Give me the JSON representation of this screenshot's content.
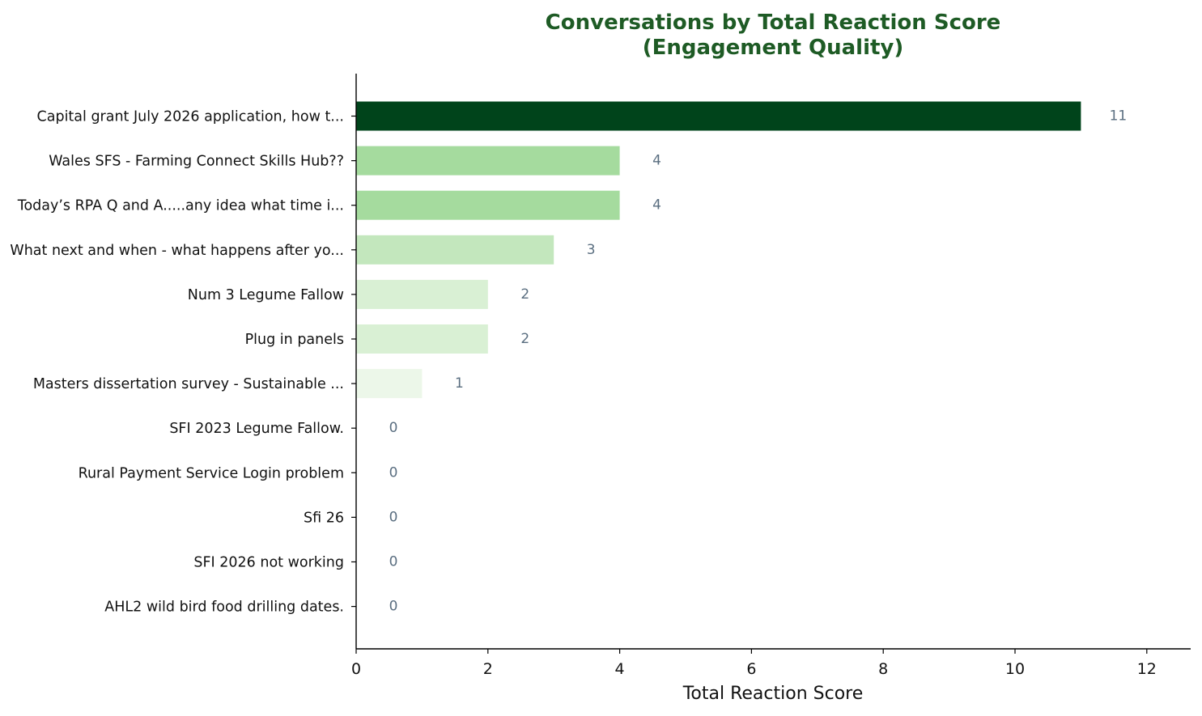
{
  "chart_data": {
    "type": "bar",
    "orientation": "horizontal",
    "title_lines": [
      "Conversations by Total Reaction Score",
      "(Engagement Quality)"
    ],
    "xlabel": "Total Reaction Score",
    "ylabel": "",
    "xlim": [
      0,
      12.66
    ],
    "xticks": [
      "0",
      "2",
      "4",
      "6",
      "8",
      "10",
      "12"
    ],
    "categories": [
      "Capital grant July 2026 application, how t...",
      "Wales SFS - Farming Connect Skills Hub??",
      "Today’s RPA Q and A.....any idea what time i...",
      "What next and when - what happens after yo...",
      "Num 3 Legume Fallow",
      "Plug in panels",
      "Masters dissertation survey - Sustainable ...",
      "SFI 2023 Legume Fallow.",
      "Rural Payment Service Login problem",
      "Sfi 26",
      "SFI 2026 not working",
      "AHL2 wild bird food drilling dates."
    ],
    "values": [
      11,
      4,
      4,
      3,
      2,
      2,
      1,
      0,
      0,
      0,
      0,
      0
    ],
    "data_labels": [
      "11",
      "4",
      "4",
      "3",
      "2",
      "2",
      "1",
      "0",
      "0",
      "0",
      "0",
      "0"
    ],
    "bar_colors": [
      "#00441b",
      "#a5db9e",
      "#a5db9e",
      "#c3e7bd",
      "#d9f0d4",
      "#d9f0d4",
      "#ecf7e9",
      "#ecf7e9",
      "#ecf7e9",
      "#ecf7e9",
      "#ecf7e9",
      "#ecf7e9"
    ],
    "title_color": "#1e5b25",
    "grid": false,
    "legend": "none"
  }
}
